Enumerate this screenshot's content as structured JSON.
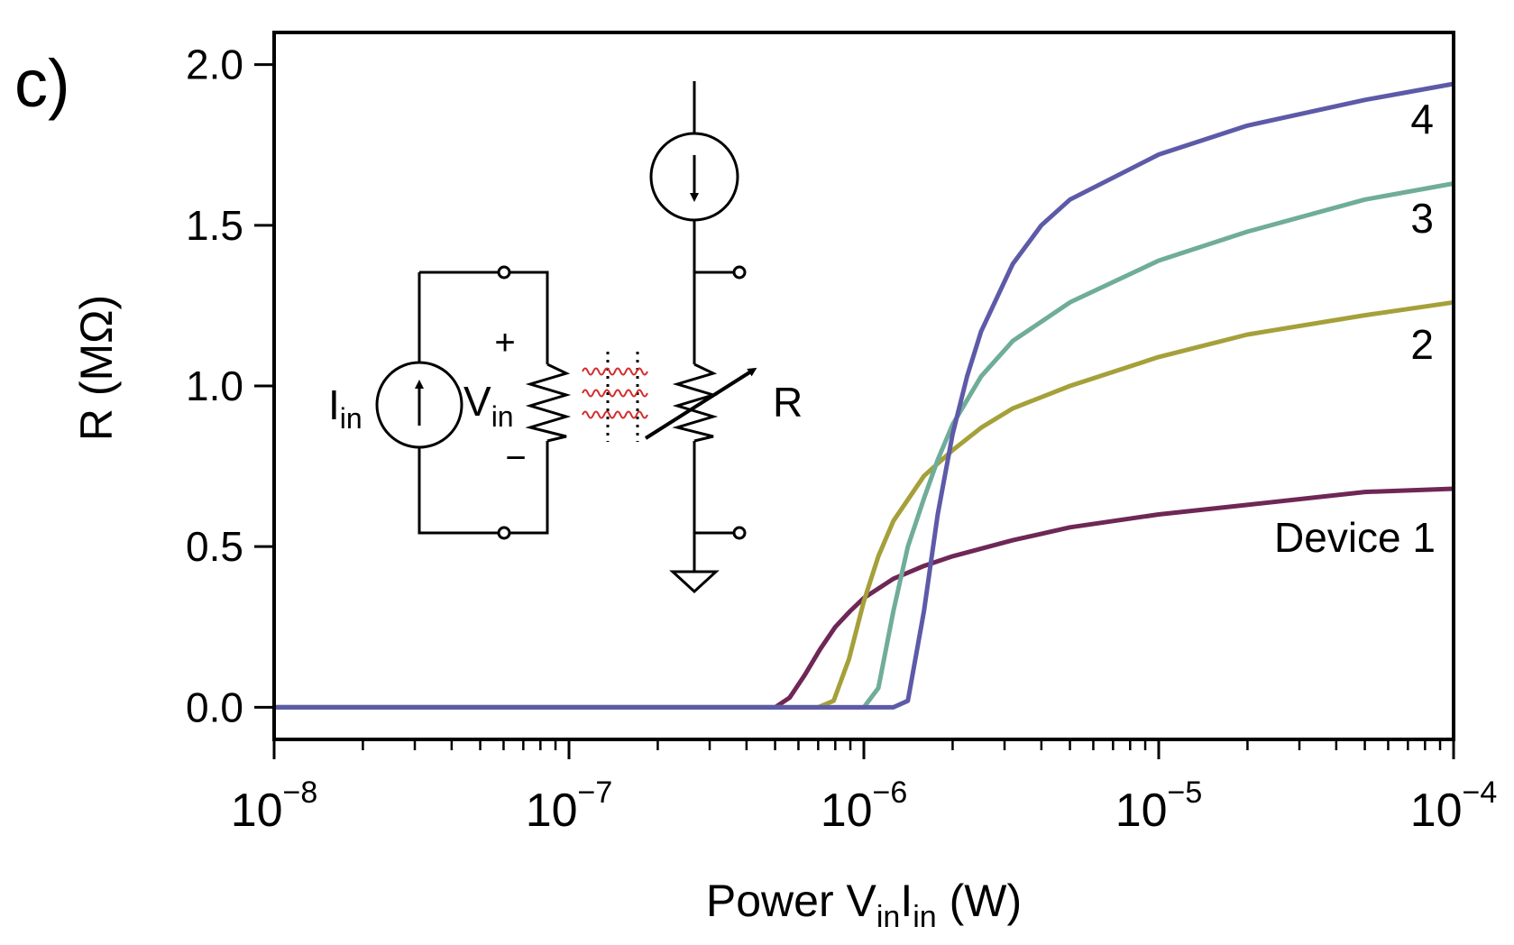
{
  "panel_label": "c)",
  "chart_data": {
    "type": "line",
    "xscale": "log",
    "xlim": [
      1e-08,
      0.0001
    ],
    "ylim": [
      -0.1,
      2.1
    ],
    "xlabel_parts": {
      "pre": "Power V",
      "sub1": "in",
      "mid": "I",
      "sub2": "in",
      "post": " (W)"
    },
    "ylabel": "R  (MΩ)",
    "grid": false,
    "xticks": [
      {
        "value": 1e-08,
        "base": "10",
        "exp": "−8"
      },
      {
        "value": 1e-07,
        "base": "10",
        "exp": "−7"
      },
      {
        "value": 1e-06,
        "base": "10",
        "exp": "−6"
      },
      {
        "value": 1e-05,
        "base": "10",
        "exp": "−5"
      },
      {
        "value": 0.0001,
        "base": "10",
        "exp": "−4"
      }
    ],
    "yticks": [
      {
        "value": 0.0,
        "label": "0.0"
      },
      {
        "value": 0.5,
        "label": "0.5"
      },
      {
        "value": 1.0,
        "label": "1.0"
      },
      {
        "value": 1.5,
        "label": "1.5"
      },
      {
        "value": 2.0,
        "label": "2.0"
      }
    ],
    "series": [
      {
        "name": "Device 1",
        "color": "#6e2756",
        "label_near": 0.52,
        "points": [
          [
            1e-08,
            0
          ],
          [
            5e-07,
            0
          ],
          [
            5.6e-07,
            0.03
          ],
          [
            6.3e-07,
            0.1
          ],
          [
            7.1e-07,
            0.18
          ],
          [
            8e-07,
            0.25
          ],
          [
            9e-07,
            0.3
          ],
          [
            1e-06,
            0.34
          ],
          [
            1.26e-06,
            0.4
          ],
          [
            1.6e-06,
            0.44
          ],
          [
            2e-06,
            0.47
          ],
          [
            3.2e-06,
            0.52
          ],
          [
            5e-06,
            0.56
          ],
          [
            1e-05,
            0.6
          ],
          [
            2e-05,
            0.63
          ],
          [
            5e-05,
            0.67
          ],
          [
            0.0001,
            0.68
          ]
        ]
      },
      {
        "name": "2",
        "color": "#a5a03a",
        "label_near": 1.1,
        "points": [
          [
            1e-08,
            0
          ],
          [
            7e-07,
            0
          ],
          [
            7.9e-07,
            0.02
          ],
          [
            8.9e-07,
            0.15
          ],
          [
            1e-06,
            0.33
          ],
          [
            1.12e-06,
            0.47
          ],
          [
            1.26e-06,
            0.58
          ],
          [
            1.6e-06,
            0.72
          ],
          [
            2e-06,
            0.8
          ],
          [
            2.5e-06,
            0.87
          ],
          [
            3.2e-06,
            0.93
          ],
          [
            5e-06,
            1.0
          ],
          [
            1e-05,
            1.09
          ],
          [
            2e-05,
            1.16
          ],
          [
            5e-05,
            1.22
          ],
          [
            0.0001,
            1.26
          ]
        ]
      },
      {
        "name": "3",
        "color": "#6fad99",
        "label_near": 1.5,
        "points": [
          [
            1e-08,
            0
          ],
          [
            1e-06,
            0
          ],
          [
            1.12e-06,
            0.06
          ],
          [
            1.26e-06,
            0.3
          ],
          [
            1.41e-06,
            0.5
          ],
          [
            1.6e-06,
            0.65
          ],
          [
            1.78e-06,
            0.77
          ],
          [
            2e-06,
            0.88
          ],
          [
            2.5e-06,
            1.03
          ],
          [
            3.2e-06,
            1.14
          ],
          [
            5e-06,
            1.26
          ],
          [
            1e-05,
            1.39
          ],
          [
            2e-05,
            1.48
          ],
          [
            5e-05,
            1.58
          ],
          [
            0.0001,
            1.63
          ]
        ]
      },
      {
        "name": "4",
        "color": "#5d5aa8",
        "label_near": 1.8,
        "points": [
          [
            1e-08,
            0
          ],
          [
            1.26e-06,
            0
          ],
          [
            1.41e-06,
            0.02
          ],
          [
            1.6e-06,
            0.3
          ],
          [
            1.78e-06,
            0.6
          ],
          [
            2e-06,
            0.85
          ],
          [
            2.24e-06,
            1.03
          ],
          [
            2.5e-06,
            1.17
          ],
          [
            3.2e-06,
            1.38
          ],
          [
            4e-06,
            1.5
          ],
          [
            5e-06,
            1.58
          ],
          [
            1e-05,
            1.72
          ],
          [
            2e-05,
            1.81
          ],
          [
            5e-05,
            1.89
          ],
          [
            0.0001,
            1.94
          ]
        ]
      }
    ]
  },
  "inset": {
    "source_label_main": "I",
    "source_label_sub": "in",
    "voltage_label_main": "V",
    "voltage_label_sub": "in",
    "plus": "+",
    "minus": "−",
    "resistor_label": "R",
    "heat_color": "#d42a2a"
  }
}
